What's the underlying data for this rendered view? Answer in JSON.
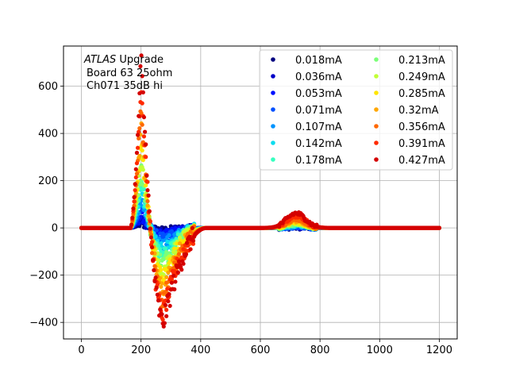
{
  "chart_data": {
    "type": "scatter",
    "xlim": [
      -60,
      1260
    ],
    "ylim": [
      -470,
      770
    ],
    "xticks": [
      0,
      200,
      400,
      600,
      800,
      1000,
      1200
    ],
    "yticks": [
      -400,
      -200,
      0,
      200,
      400,
      600
    ],
    "xtick_labels": [
      "0",
      "200",
      "400",
      "600",
      "800",
      "1000",
      "1200"
    ],
    "ytick_labels": [
      "−400",
      "−200",
      "0",
      "200",
      "400",
      "600"
    ],
    "grid": true,
    "legend_position": "top-right",
    "legend_columns": 2,
    "annotation": {
      "line1_italic": "ATLAS",
      "line1_rest": " Upgrade",
      "line2": "Board 63 25ohm",
      "line3": "Ch071 35dB hi"
    },
    "pulse_shape": {
      "baseline_end_x": 165,
      "peak_x": 200,
      "zero_cross_x": 230,
      "min_x": 275,
      "recover_x": 420,
      "bump_center_x": 720,
      "bump_width": 45,
      "x_max": 1200
    },
    "series": [
      {
        "name": "0.018mA",
        "color": "#00007f",
        "peak": 18,
        "undershoot": -10,
        "bump": 2
      },
      {
        "name": "0.036mA",
        "color": "#0000c8",
        "peak": 36,
        "undershoot": -20,
        "bump": 4
      },
      {
        "name": "0.053mA",
        "color": "#0010ff",
        "peak": 55,
        "undershoot": -30,
        "bump": 5
      },
      {
        "name": "0.071mA",
        "color": "#0050ff",
        "peak": 80,
        "undershoot": -45,
        "bump": 6
      },
      {
        "name": "0.107mA",
        "color": "#0094ff",
        "peak": 120,
        "undershoot": -70,
        "bump": 9
      },
      {
        "name": "0.142mA",
        "color": "#0ddcee",
        "peak": 160,
        "undershoot": -95,
        "bump": 12
      },
      {
        "name": "0.178mA",
        "color": "#36ffc0",
        "peak": 210,
        "undershoot": -120,
        "bump": 15
      },
      {
        "name": "0.213mA",
        "color": "#7cff79",
        "peak": 250,
        "undershoot": -145,
        "bump": 18
      },
      {
        "name": "0.249mA",
        "color": "#c1ff36",
        "peak": 300,
        "undershoot": -175,
        "bump": 21
      },
      {
        "name": "0.285mA",
        "color": "#ffe500",
        "peak": 360,
        "undershoot": -210,
        "bump": 26
      },
      {
        "name": "0.32mA",
        "color": "#ffa700",
        "peak": 430,
        "undershoot": -260,
        "bump": 32
      },
      {
        "name": "0.356mA",
        "color": "#ff6800",
        "peak": 520,
        "undershoot": -310,
        "bump": 40
      },
      {
        "name": "0.391mA",
        "color": "#ff2a00",
        "peak": 620,
        "undershoot": -360,
        "bump": 52
      },
      {
        "name": "0.427mA",
        "color": "#d40000",
        "peak": 720,
        "undershoot": -400,
        "bump": 62
      }
    ]
  }
}
